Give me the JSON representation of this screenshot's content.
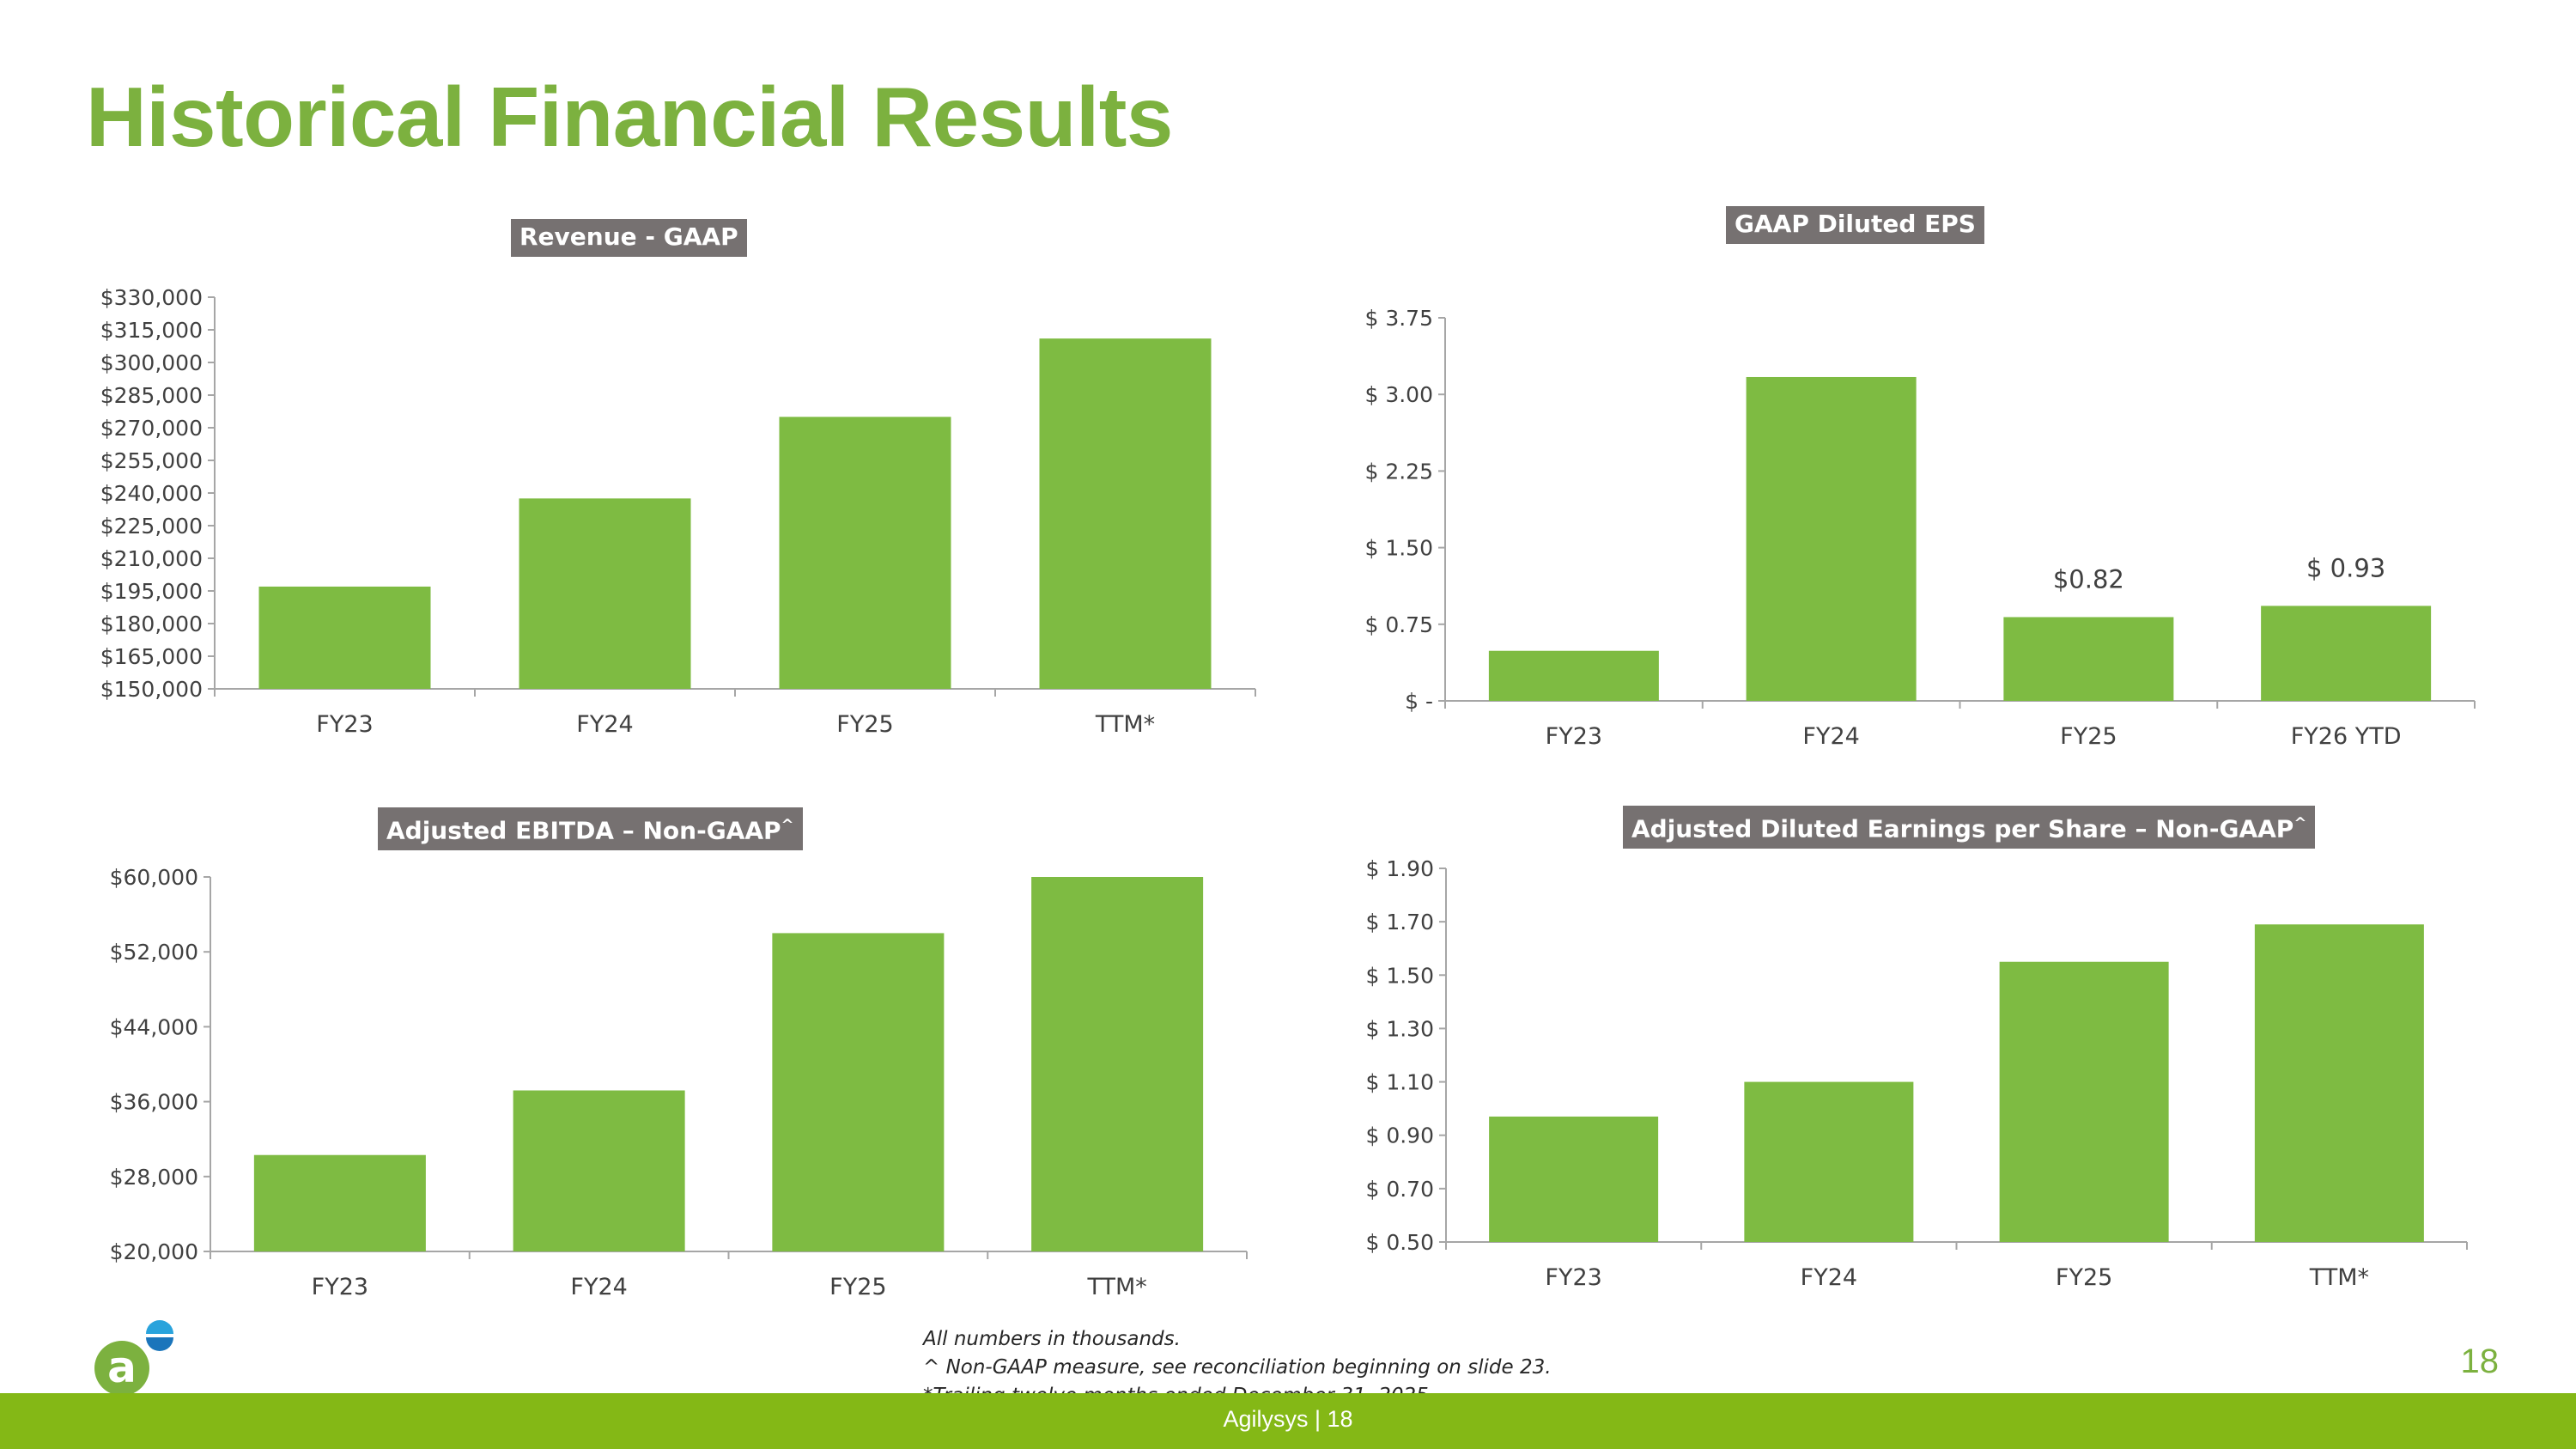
{
  "title": "Historical Financial Results",
  "colors": {
    "accent": "#7cb13f",
    "bar": "#7ebb42",
    "label_bg": "#767171",
    "footer_bar": "#84b816"
  },
  "chart_data": [
    {
      "id": "revenue",
      "type": "bar",
      "title": "Revenue - GAAP",
      "categories": [
        "FY23",
        "FY24",
        "FY25",
        "TTM*"
      ],
      "values": [
        197000,
        237500,
        275000,
        311000
      ],
      "ylim": [
        150000,
        330000
      ],
      "yticks": [
        150000,
        165000,
        180000,
        195000,
        210000,
        225000,
        240000,
        255000,
        270000,
        285000,
        300000,
        315000,
        330000
      ],
      "ytick_labels": [
        "$150,000",
        "$165,000",
        "$180,000",
        "$195,000",
        "$210,000",
        "$225,000",
        "$240,000",
        "$255,000",
        "$270,000",
        "$285,000",
        "$300,000",
        "$315,000",
        "$330,000"
      ],
      "data_labels": [
        "",
        "",
        "",
        ""
      ],
      "grid": false
    },
    {
      "id": "gaap-eps",
      "type": "bar",
      "title": "GAAP Diluted EPS",
      "categories": [
        "FY23",
        "FY24",
        "FY25",
        "FY26 YTD"
      ],
      "values": [
        0.49,
        3.17,
        0.82,
        0.93
      ],
      "ylim": [
        0,
        3.75
      ],
      "yticks": [
        0,
        0.75,
        1.5,
        2.25,
        3.0,
        3.75
      ],
      "ytick_labels": [
        "$ -",
        "$ 0.75",
        "$ 1.50",
        "$ 2.25",
        "$ 3.00",
        "$ 3.75"
      ],
      "data_labels": [
        "",
        "",
        "$0.82",
        "$ 0.93"
      ],
      "grid": false
    },
    {
      "id": "ebitda",
      "type": "bar",
      "title": "Adjusted EBITDA – Non-GAAP",
      "title_sup": "^",
      "categories": [
        "FY23",
        "FY24",
        "FY25",
        "TTM*"
      ],
      "values": [
        30300,
        37200,
        54000,
        60000
      ],
      "ylim": [
        20000,
        60000
      ],
      "yticks": [
        20000,
        28000,
        36000,
        44000,
        52000,
        60000
      ],
      "ytick_labels": [
        "$20,000",
        "$28,000",
        "$36,000",
        "$44,000",
        "$52,000",
        "$60,000"
      ],
      "data_labels": [
        "",
        "",
        "",
        ""
      ],
      "grid": false
    },
    {
      "id": "adj-eps",
      "type": "bar",
      "title": "Adjusted Diluted Earnings per Share – Non-GAAP",
      "title_sup": "^",
      "categories": [
        "FY23",
        "FY24",
        "FY25",
        "TTM*"
      ],
      "values": [
        0.97,
        1.1,
        1.55,
        1.69
      ],
      "ylim": [
        0.5,
        1.9
      ],
      "yticks": [
        0.5,
        0.7,
        0.9,
        1.1,
        1.3,
        1.5,
        1.7,
        1.9
      ],
      "ytick_labels": [
        "$ 0.50",
        "$ 0.70",
        "$ 0.90",
        "$ 1.10",
        "$ 1.30",
        "$ 1.50",
        "$ 1.70",
        "$ 1.90"
      ],
      "data_labels": [
        "",
        "",
        "",
        ""
      ],
      "grid": false
    }
  ],
  "footnotes": [
    "All numbers in thousands.",
    "^ Non-GAAP measure, see reconciliation beginning on slide 23.",
    "*Trailing twelve months ended December 31, 2025."
  ],
  "page_number": "18",
  "footer": {
    "text": "Agilysys  |  18"
  },
  "logo": {
    "icon": "agilysys-logo-icon",
    "letter": "a"
  }
}
